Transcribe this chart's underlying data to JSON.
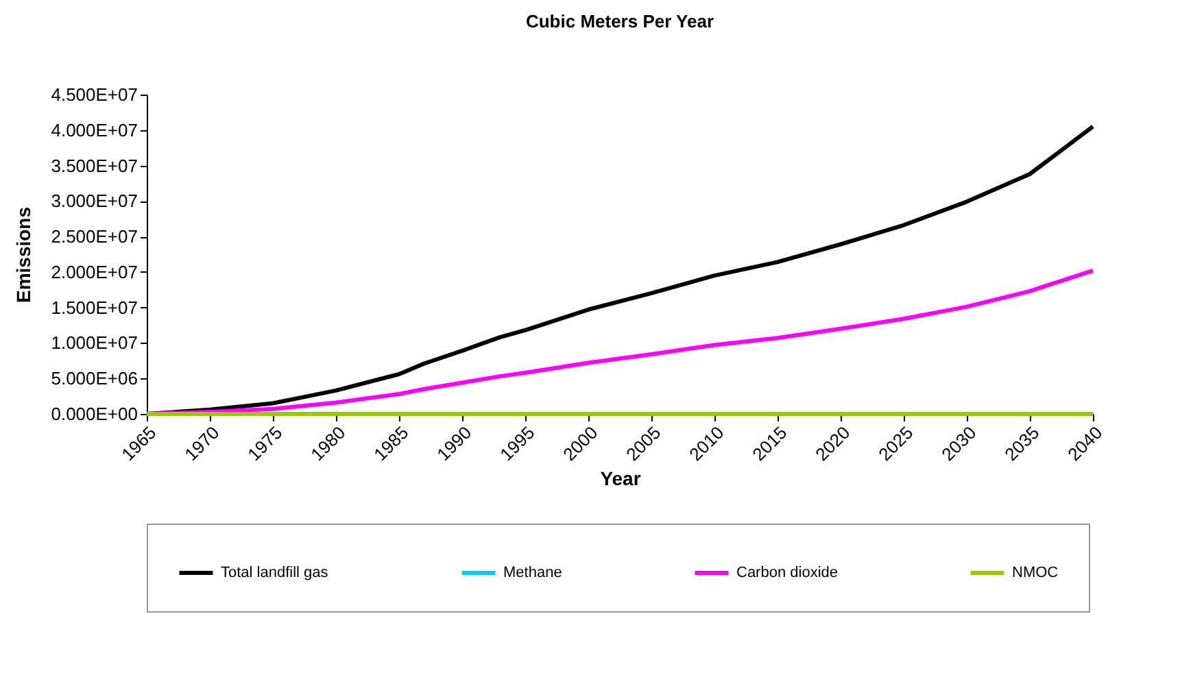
{
  "chart_data": {
    "type": "line",
    "title": "Cubic Meters Per Year",
    "xlabel": "Year",
    "ylabel": "Emissions",
    "x": [
      1965,
      1970,
      1975,
      1980,
      1985,
      1987,
      1990,
      1993,
      1995,
      2000,
      2005,
      2010,
      2015,
      2020,
      2025,
      2030,
      2035,
      2040
    ],
    "series": [
      {
        "name": "Total landfill gas",
        "color": "#000000",
        "values": [
          0,
          600000,
          1500000,
          3300000,
          5600000,
          7100000,
          8900000,
          10800000,
          11800000,
          14700000,
          17000000,
          19500000,
          21400000,
          23900000,
          26600000,
          29900000,
          33800000,
          40500000
        ]
      },
      {
        "name": "Methane",
        "color": "#00ccff",
        "values": [
          null,
          null,
          null,
          null,
          null,
          null,
          null,
          null,
          null,
          null,
          null,
          null,
          null,
          null,
          null,
          null,
          null,
          null
        ]
      },
      {
        "name": "Carbon dioxide",
        "color": "#ff00ff",
        "values": [
          0,
          300000,
          700000,
          1600000,
          2800000,
          3500000,
          4400000,
          5300000,
          5800000,
          7200000,
          8400000,
          9700000,
          10700000,
          12000000,
          13400000,
          15100000,
          17300000,
          20200000
        ]
      },
      {
        "name": "NMOC",
        "color": "#99cc00",
        "values": [
          0,
          0,
          0,
          0,
          0,
          0,
          0,
          0,
          0,
          0,
          0,
          0,
          0,
          0,
          0,
          0,
          0,
          0
        ]
      }
    ],
    "xlim": [
      1965,
      2040
    ],
    "xticks": [
      1965,
      1970,
      1975,
      1980,
      1985,
      1990,
      1995,
      2000,
      2005,
      2010,
      2015,
      2020,
      2025,
      2030,
      2035,
      2040
    ],
    "ylim": [
      0,
      45000000
    ],
    "yticks": [
      {
        "value": 0,
        "label": "0.000E+00"
      },
      {
        "value": 5000000,
        "label": "5.000E+06"
      },
      {
        "value": 10000000,
        "label": "1.000E+07"
      },
      {
        "value": 15000000,
        "label": "1.500E+07"
      },
      {
        "value": 20000000,
        "label": "2.000E+07"
      },
      {
        "value": 25000000,
        "label": "2.500E+07"
      },
      {
        "value": 30000000,
        "label": "3.000E+07"
      },
      {
        "value": 35000000,
        "label": "3.500E+07"
      },
      {
        "value": 40000000,
        "label": "4.000E+07"
      },
      {
        "value": 45000000,
        "label": "4.500E+07"
      }
    ],
    "grid": false,
    "legend": "bottom",
    "marker": "none",
    "line_style": "solid"
  }
}
